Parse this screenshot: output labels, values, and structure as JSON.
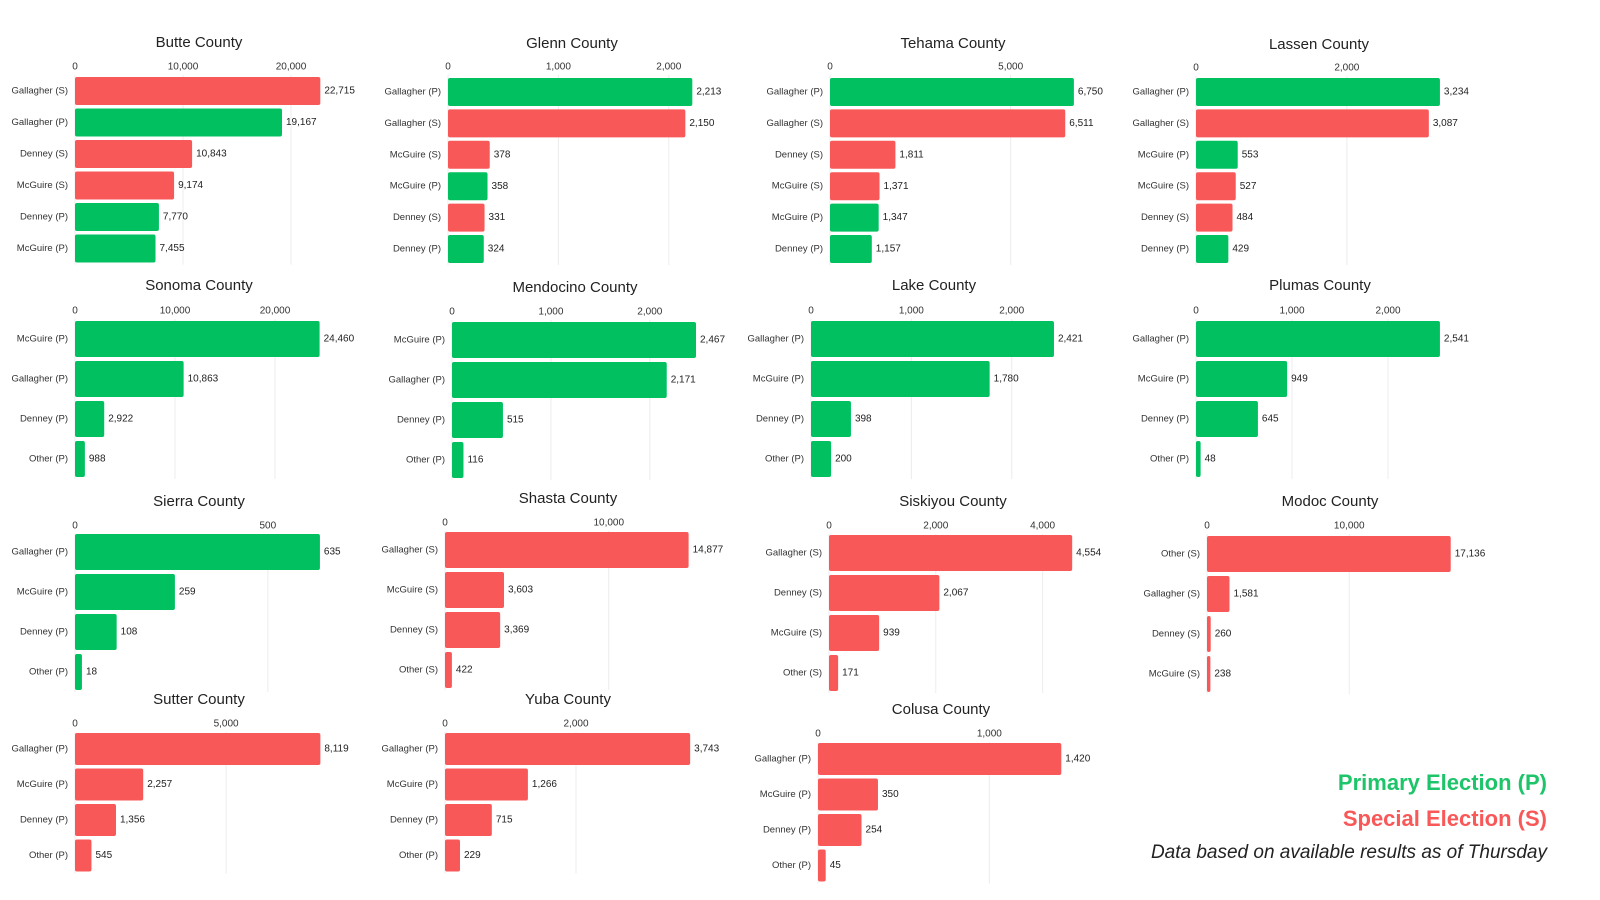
{
  "chart_data": [
    {
      "type": "bar",
      "orientation": "horizontal",
      "title": "Butte County",
      "categories": [
        "Gallagher (S)",
        "Gallagher (P)",
        "Denney (S)",
        "McGuire (S)",
        "Denney (P)",
        "McGuire (P)"
      ],
      "values": [
        22715,
        19167,
        10843,
        9174,
        7770,
        7455
      ],
      "value_labels": [
        "22,715",
        "19,167",
        "10,843",
        "9,174",
        "7,770",
        "7,455"
      ],
      "colors": [
        "#f95858",
        "#00c060",
        "#f95858",
        "#f95858",
        "#00c060",
        "#00c060"
      ],
      "xlim": [
        0,
        25000
      ],
      "xticks": [
        0,
        {
          "value": 10000,
          "label": "10,000"
        },
        {
          "value": 20000,
          "label": "20,000"
        }
      ],
      "grid": true
    },
    {
      "type": "bar",
      "orientation": "horizontal",
      "title": "Glenn County",
      "categories": [
        "Gallagher (P)",
        "Gallagher (S)",
        "McGuire (S)",
        "McGuire (P)",
        "Denney (S)",
        "Denney (P)"
      ],
      "values": [
        2213,
        2150,
        378,
        358,
        331,
        324
      ],
      "value_labels": [
        "2,213",
        "2,150",
        "378",
        "358",
        "331",
        "324"
      ],
      "colors": [
        "#00c060",
        "#f95858",
        "#f95858",
        "#00c060",
        "#f95858",
        "#00c060"
      ],
      "xlim": [
        0,
        2500
      ],
      "xticks": [
        0,
        {
          "value": 1000,
          "label": "1,000"
        },
        {
          "value": 2000,
          "label": "2,000"
        }
      ],
      "grid": true
    },
    {
      "type": "bar",
      "orientation": "horizontal",
      "title": "Tehama County",
      "categories": [
        "Gallagher (P)",
        "Gallagher (S)",
        "Denney (S)",
        "McGuire (S)",
        "McGuire (P)",
        "Denney (P)"
      ],
      "values": [
        6750,
        6511,
        1811,
        1371,
        1347,
        1157
      ],
      "value_labels": [
        "6,750",
        "6,511",
        "1,811",
        "1,371",
        "1,347",
        "1,157"
      ],
      "colors": [
        "#00c060",
        "#f95858",
        "#f95858",
        "#f95858",
        "#00c060",
        "#00c060"
      ],
      "xlim": [
        0,
        7500
      ],
      "xticks": [
        0,
        {
          "value": 5000,
          "label": "5,000"
        }
      ],
      "grid": true
    },
    {
      "type": "bar",
      "orientation": "horizontal",
      "title": "Lassen County",
      "categories": [
        "Gallagher (P)",
        "Gallagher (S)",
        "McGuire (P)",
        "McGuire (S)",
        "Denney (S)",
        "Denney (P)"
      ],
      "values": [
        3234,
        3087,
        553,
        527,
        484,
        429
      ],
      "value_labels": [
        "3,234",
        "3,087",
        "553",
        "527",
        "484",
        "429"
      ],
      "colors": [
        "#00c060",
        "#f95858",
        "#00c060",
        "#f95858",
        "#f95858",
        "#00c060"
      ],
      "xlim": [
        0,
        3500
      ],
      "xticks": [
        0,
        {
          "value": 2000,
          "label": "2,000"
        }
      ],
      "grid": true
    },
    {
      "type": "bar",
      "orientation": "horizontal",
      "title": "Sonoma County",
      "categories": [
        "McGuire (P)",
        "Gallagher (P)",
        "Denney (P)",
        "Other (P)"
      ],
      "values": [
        24460,
        10863,
        2922,
        988
      ],
      "value_labels": [
        "24,460",
        "10,863",
        "2,922",
        "988"
      ],
      "colors": [
        "#00c060",
        "#00c060",
        "#00c060",
        "#00c060"
      ],
      "xlim": [
        0,
        27500
      ],
      "xticks": [
        0,
        {
          "value": 10000,
          "label": "10,000"
        },
        {
          "value": 20000,
          "label": "20,000"
        }
      ],
      "grid": true
    },
    {
      "type": "bar",
      "orientation": "horizontal",
      "title": "Mendocino County",
      "categories": [
        "McGuire (P)",
        "Gallagher (P)",
        "Denney (P)",
        "Other (P)"
      ],
      "values": [
        2467,
        2171,
        515,
        116
      ],
      "value_labels": [
        "2,467",
        "2,171",
        "515",
        "116"
      ],
      "colors": [
        "#00c060",
        "#00c060",
        "#00c060",
        "#00c060"
      ],
      "xlim": [
        0,
        2750
      ],
      "xticks": [
        0,
        {
          "value": 1000,
          "label": "1,000"
        },
        {
          "value": 2000,
          "label": "2,000"
        }
      ],
      "grid": true
    },
    {
      "type": "bar",
      "orientation": "horizontal",
      "title": "Lake County",
      "categories": [
        "Gallagher (P)",
        "McGuire (P)",
        "Denney (P)",
        "Other (P)"
      ],
      "values": [
        2421,
        1780,
        398,
        200
      ],
      "value_labels": [
        "2,421",
        "1,780",
        "398",
        "200"
      ],
      "colors": [
        "#00c060",
        "#00c060",
        "#00c060",
        "#00c060"
      ],
      "xlim": [
        0,
        2750
      ],
      "xticks": [
        0,
        {
          "value": 1000,
          "label": "1,000"
        },
        {
          "value": 2000,
          "label": "2,000"
        }
      ],
      "grid": true
    },
    {
      "type": "bar",
      "orientation": "horizontal",
      "title": "Plumas County",
      "categories": [
        "Gallagher (P)",
        "McGuire (P)",
        "Denney (P)",
        "Other (P)"
      ],
      "values": [
        2541,
        949,
        645,
        48
      ],
      "value_labels": [
        "2,541",
        "949",
        "645",
        "48"
      ],
      "colors": [
        "#00c060",
        "#00c060",
        "#00c060",
        "#00c060"
      ],
      "xlim": [
        0,
        2750
      ],
      "xticks": [
        0,
        {
          "value": 1000,
          "label": "1,000"
        },
        {
          "value": 2000,
          "label": "2,000"
        }
      ],
      "grid": true
    },
    {
      "type": "bar",
      "orientation": "horizontal",
      "title": "Sierra County",
      "categories": [
        "Gallagher (P)",
        "McGuire (P)",
        "Denney (P)",
        "Other (P)"
      ],
      "values": [
        635,
        259,
        108,
        18
      ],
      "colors": [
        "#00c060",
        "#00c060",
        "#00c060",
        "#00c060"
      ],
      "xlim": [
        0,
        700
      ],
      "xticks": [
        0,
        500
      ],
      "grid": true
    },
    {
      "type": "bar",
      "orientation": "horizontal",
      "title": "Shasta County",
      "categories": [
        "Gallagher (S)",
        "McGuire (S)",
        "Denney (S)",
        "Other (S)"
      ],
      "values": [
        14877,
        3603,
        3369,
        422
      ],
      "value_labels": [
        "14,877",
        "3,603",
        "3,369",
        "422"
      ],
      "colors": [
        "#f95858",
        "#f95858",
        "#f95858",
        "#f95858"
      ],
      "xlim": [
        0,
        16000
      ],
      "xticks": [
        0,
        {
          "value": 10000,
          "label": "10,000"
        }
      ],
      "grid": true
    },
    {
      "type": "bar",
      "orientation": "horizontal",
      "title": "Siskiyou County",
      "categories": [
        "Gallagher (S)",
        "Denney (S)",
        "McGuire (S)",
        "Other (S)"
      ],
      "values": [
        4554,
        2067,
        939,
        171
      ],
      "value_labels": [
        "4,554",
        "2,067",
        "939",
        "171"
      ],
      "colors": [
        "#f95858",
        "#f95858",
        "#f95858",
        "#f95858"
      ],
      "xlim": [
        0,
        5000
      ],
      "xticks": [
        0,
        {
          "value": 2000,
          "label": "2,000"
        },
        {
          "value": 4000,
          "label": "4,000"
        }
      ],
      "grid": true
    },
    {
      "type": "bar",
      "orientation": "horizontal",
      "title": "Modoc County",
      "categories": [
        "Other (S)",
        "Gallagher (S)",
        "Denney (S)",
        "McGuire (S)"
      ],
      "values": [
        17136,
        1581,
        260,
        238
      ],
      "value_labels": [
        "17,136",
        "1,581",
        "260",
        "238"
      ],
      "colors": [
        "#f95858",
        "#f95858",
        "#f95858",
        "#f95858"
      ],
      "xlim": [
        0,
        18000
      ],
      "xticks": [
        0,
        {
          "value": 10000,
          "label": "10,000"
        }
      ],
      "grid": true
    },
    {
      "type": "bar",
      "orientation": "horizontal",
      "title": "Sutter County",
      "categories": [
        "Gallagher (P)",
        "McGuire (P)",
        "Denney (P)",
        "Other (P)"
      ],
      "values": [
        8119,
        2257,
        1356,
        545
      ],
      "value_labels": [
        "8,119",
        "2,257",
        "1,356",
        "545"
      ],
      "colors": [
        "#f95858",
        "#f95858",
        "#f95858",
        "#f95858"
      ],
      "xlim": [
        0,
        9000
      ],
      "xticks": [
        0,
        {
          "value": 5000,
          "label": "5,000"
        }
      ],
      "grid": true
    },
    {
      "type": "bar",
      "orientation": "horizontal",
      "title": "Yuba County",
      "categories": [
        "Gallagher (P)",
        "McGuire (P)",
        "Denney (P)",
        "Other (P)"
      ],
      "values": [
        3743,
        1266,
        715,
        229
      ],
      "value_labels": [
        "3,743",
        "1,266",
        "715",
        "229"
      ],
      "colors": [
        "#f95858",
        "#f95858",
        "#f95858",
        "#f95858"
      ],
      "xlim": [
        0,
        4000
      ],
      "xticks": [
        0,
        {
          "value": 2000,
          "label": "2,000"
        }
      ],
      "grid": true
    },
    {
      "type": "bar",
      "orientation": "horizontal",
      "title": "Colusa County",
      "categories": [
        "Gallagher (P)",
        "McGuire (P)",
        "Denney (P)",
        "Other (P)"
      ],
      "values": [
        1420,
        350,
        254,
        45
      ],
      "value_labels": [
        "1,420",
        "350",
        "254",
        "45"
      ],
      "colors": [
        "#f95858",
        "#f95858",
        "#f95858",
        "#f95858"
      ],
      "xlim": [
        0,
        1500
      ],
      "xticks": [
        0,
        {
          "value": 1000,
          "label": "1,000"
        }
      ],
      "grid": true
    }
  ],
  "legend": [
    {
      "label": "Primary Election (P)",
      "color": "#1ec46a"
    },
    {
      "label": "Special Election (S)",
      "color": "#f95858"
    }
  ],
  "note": "Data based on available results as of Thursday"
}
